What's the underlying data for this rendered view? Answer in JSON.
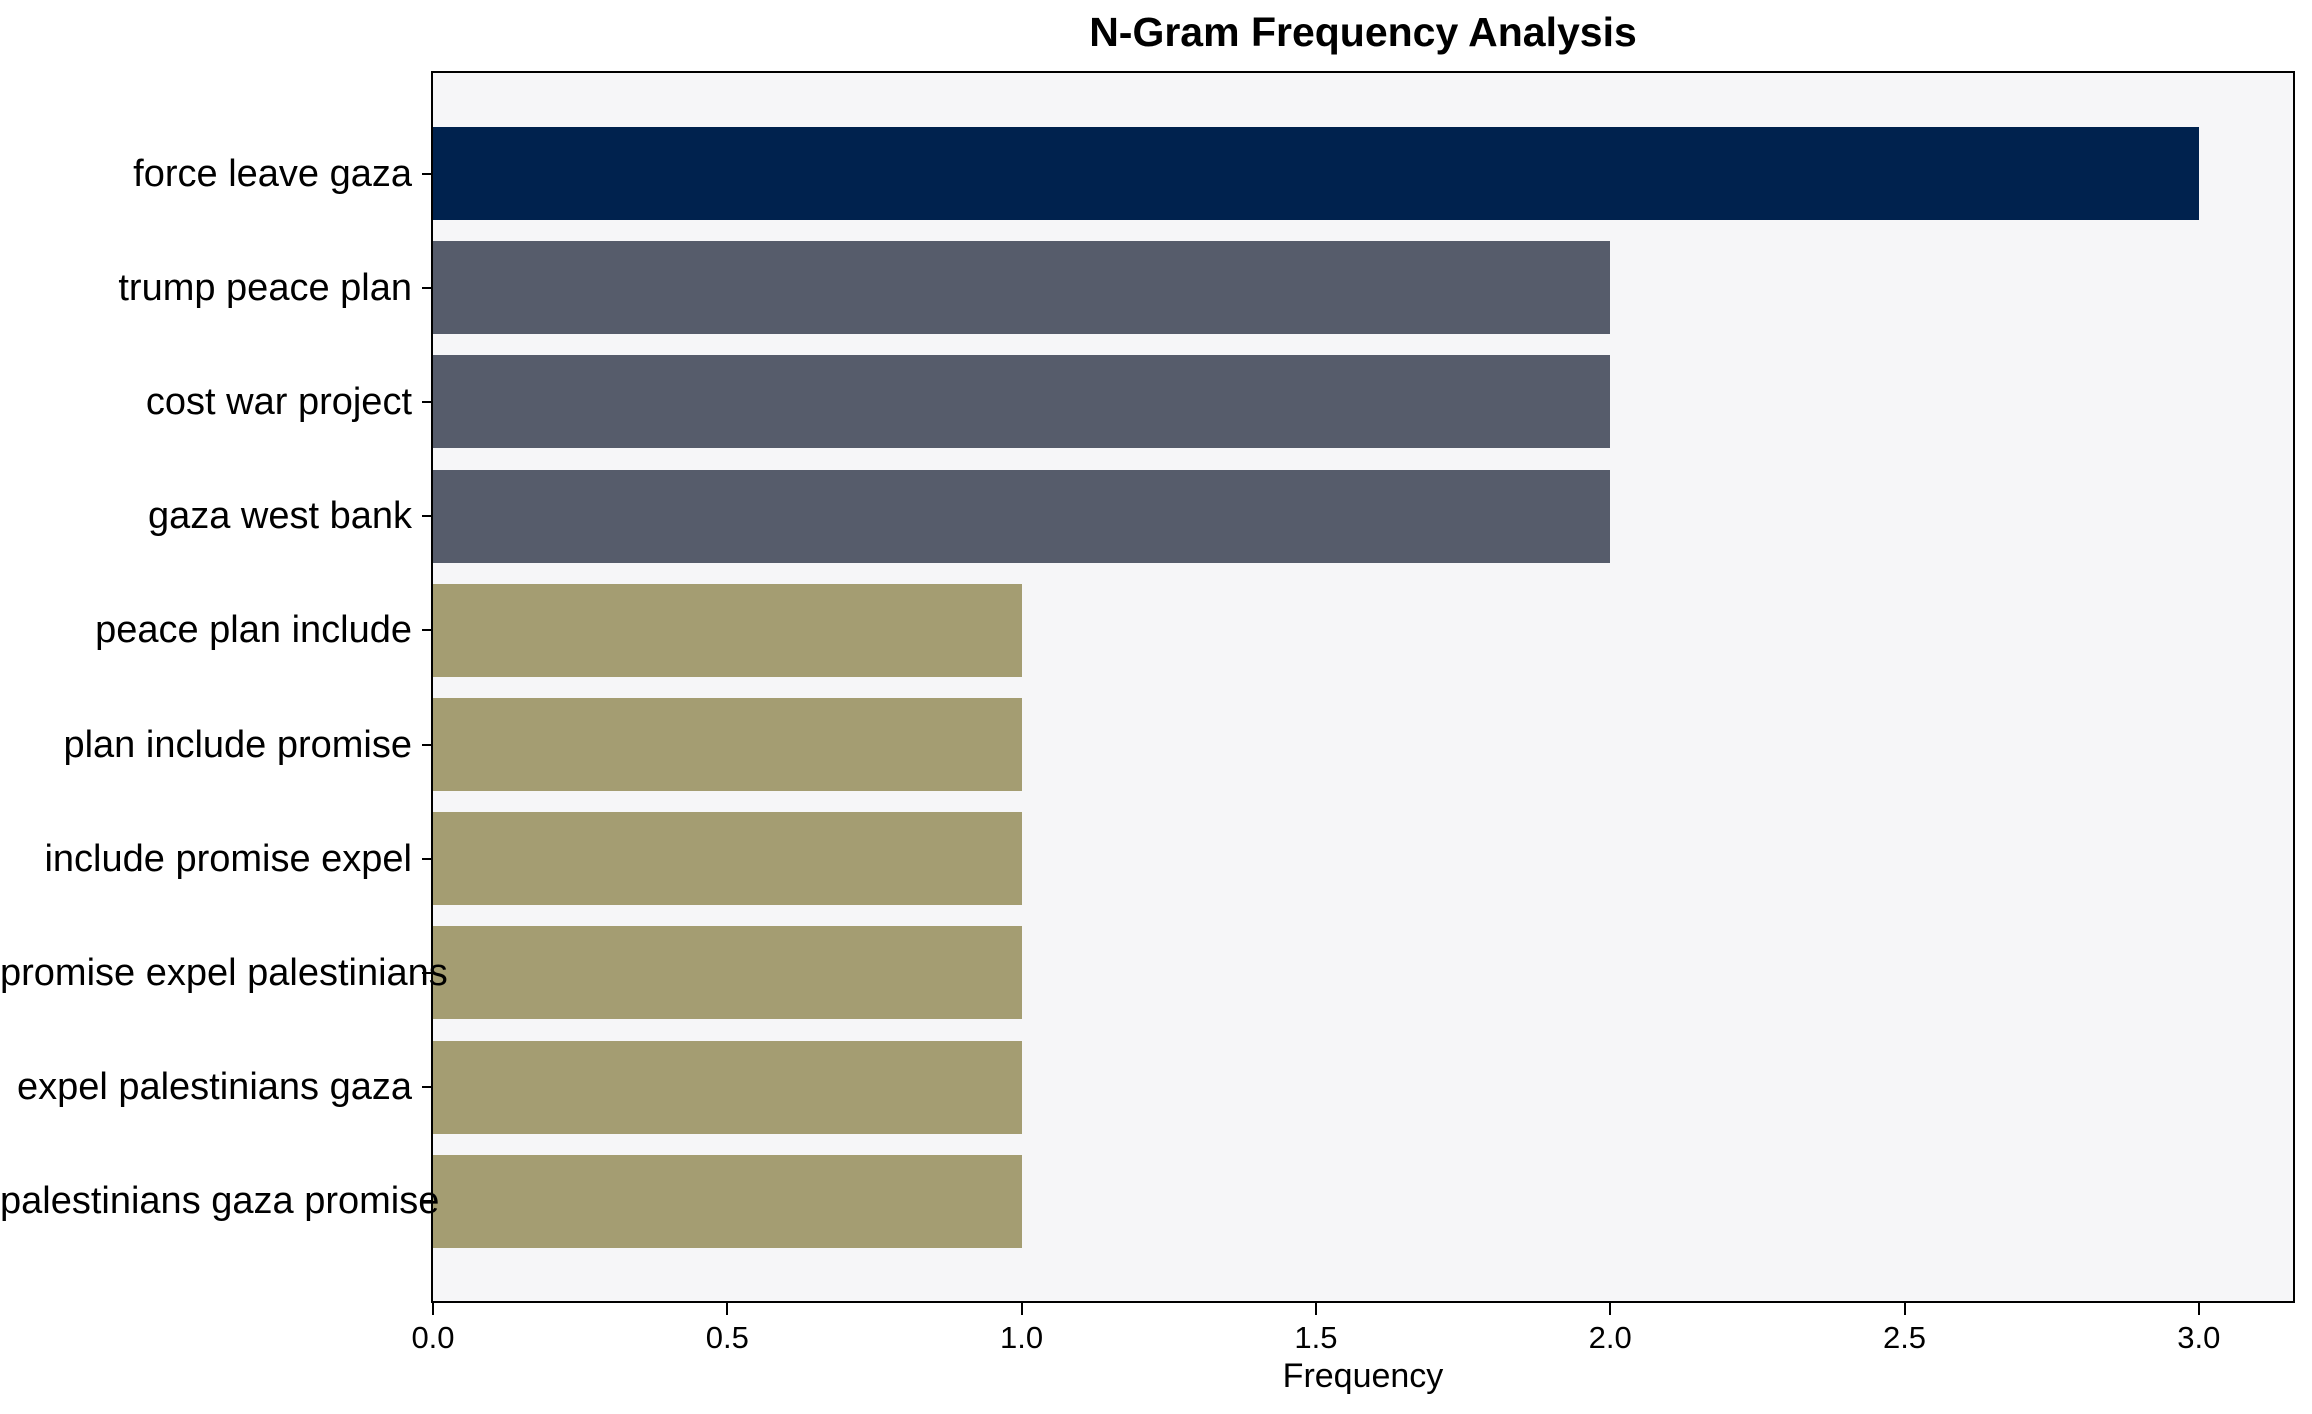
{
  "chart_data": {
    "type": "bar",
    "orientation": "horizontal",
    "title": "N-Gram Frequency Analysis",
    "xlabel": "Frequency",
    "ylabel": "",
    "categories": [
      "force leave gaza",
      "trump peace plan",
      "cost war project",
      "gaza west bank",
      "peace plan include",
      "plan include promise",
      "include promise expel",
      "promise expel palestinians",
      "expel palestinians gaza",
      "palestinians gaza promise"
    ],
    "values": [
      3,
      2,
      2,
      2,
      1,
      1,
      1,
      1,
      1,
      1
    ],
    "bar_colors": [
      "#00224e",
      "#565c6b",
      "#565c6b",
      "#565c6b",
      "#a49d72",
      "#a49d72",
      "#a49d72",
      "#a49d72",
      "#a49d72",
      "#a49d72"
    ],
    "xlim": [
      0,
      3.16
    ],
    "xticks": [
      0.0,
      0.5,
      1.0,
      1.5,
      2.0,
      2.5,
      3.0
    ],
    "xtick_labels": [
      "0.0",
      "0.5",
      "1.0",
      "1.5",
      "2.0",
      "2.5",
      "3.0"
    ],
    "grid": false,
    "legend": null,
    "colors": {
      "value_3_bar": "#00224e",
      "value_2_bar": "#565c6b",
      "value_1_bar": "#a49d72",
      "plot_background": "#f6f6f8",
      "figure_background": "#ffffff",
      "axis": "#000000",
      "text": "#000000"
    }
  }
}
